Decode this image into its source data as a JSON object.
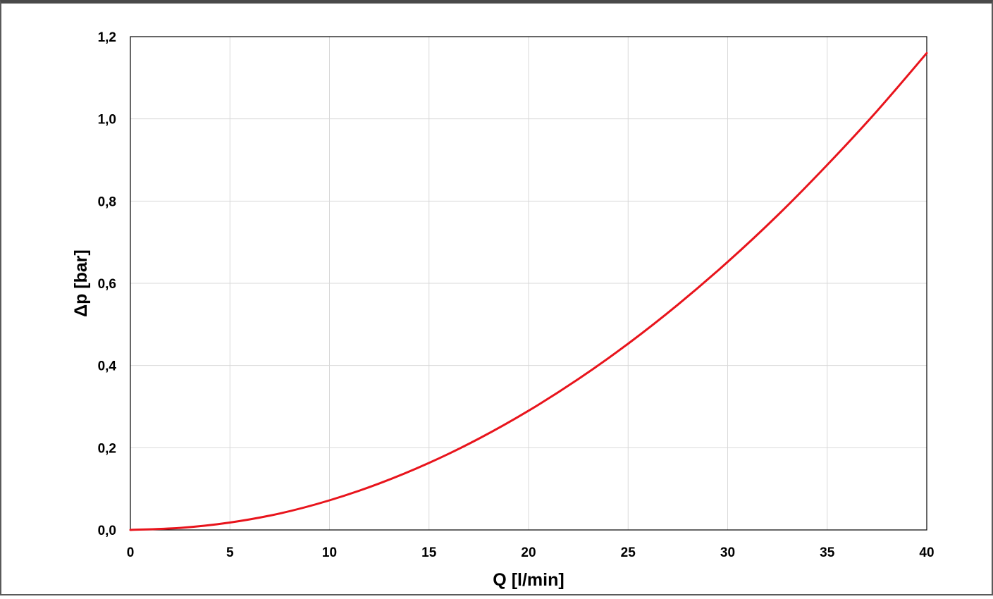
{
  "chart_data": {
    "type": "line",
    "xlabel": "Q [l/min]",
    "ylabel": "Δp [bar]",
    "xlim": [
      0,
      40
    ],
    "ylim": [
      0,
      1.2
    ],
    "xticks": [
      "0",
      "5",
      "10",
      "15",
      "20",
      "25",
      "30",
      "35",
      "40"
    ],
    "yticks": [
      "0,0",
      "0,2",
      "0,4",
      "0,6",
      "0,8",
      "1,0",
      "1,2"
    ],
    "grid": true,
    "legend": "none",
    "series": [
      {
        "color": "#e8141c",
        "x": [
          0,
          2.5,
          5,
          7.5,
          10,
          12.5,
          15,
          17.5,
          20,
          22.5,
          25,
          27.5,
          30,
          32.5,
          35,
          37.5,
          40
        ],
        "y": [
          0.0,
          0.005,
          0.018,
          0.04,
          0.072,
          0.113,
          0.163,
          0.222,
          0.29,
          0.367,
          0.453,
          0.548,
          0.652,
          0.765,
          0.888,
          1.019,
          1.16
        ]
      }
    ]
  }
}
